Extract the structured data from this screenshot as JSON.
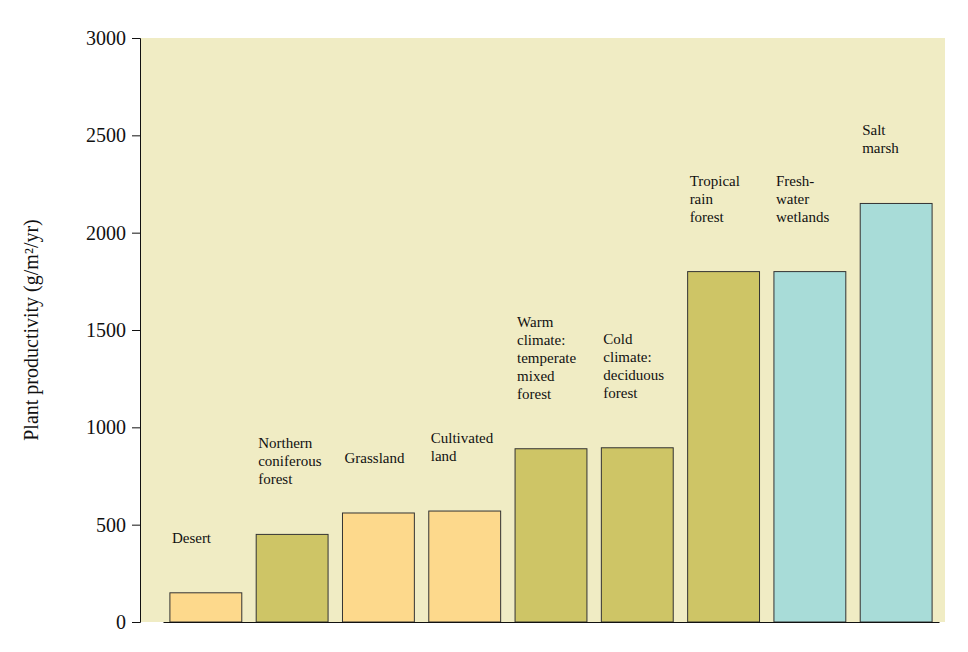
{
  "chart_data": {
    "type": "bar",
    "y_label": "Plant productivity (g/m²/yr)",
    "categories": [
      "Desert",
      "Northern\nconiferous\nforest",
      "Grassland",
      "Cultivated\nland",
      "Warm\nclimate:\ntemperate\nmixed\nforest",
      "Cold\nclimate:\ndeciduous\nforest",
      "Tropical\nrain\nforest",
      "Fresh-\nwater\nwetlands",
      "Salt\nmarsh"
    ],
    "values": [
      150,
      450,
      560,
      570,
      890,
      895,
      1800,
      1800,
      2150
    ],
    "colors": [
      "#fdd98c",
      "#cec566",
      "#fdd98c",
      "#fdd98c",
      "#cec566",
      "#cec566",
      "#cec566",
      "#a8dcd8",
      "#a8dcd8"
    ],
    "ylim": [
      0,
      3000
    ],
    "yticks": [
      0,
      500,
      1000,
      1500,
      2000,
      2500,
      3000
    ],
    "grid": false,
    "data_labels": false,
    "tick_labels": "y"
  }
}
